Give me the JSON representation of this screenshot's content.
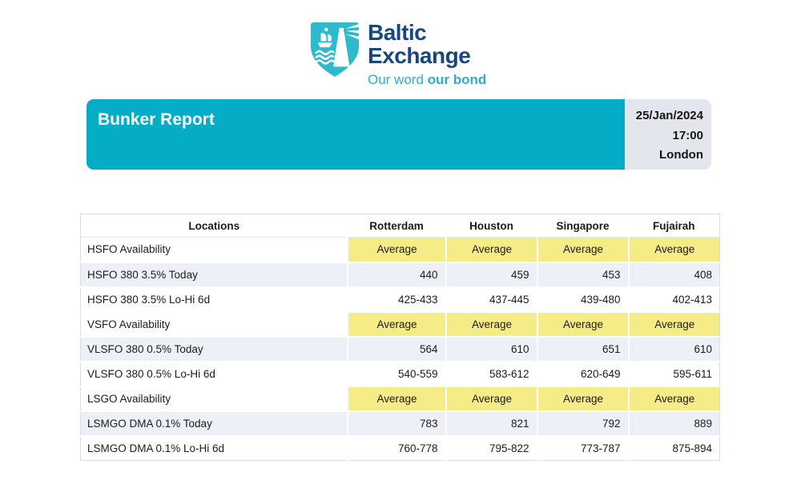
{
  "colors": {
    "teal_bar": "#05ACC5",
    "logo_teal": "#2FB9CC",
    "tagline_teal": "#2BAEC8",
    "navy": "#17477D",
    "highlight_yellow": "#F6EC87",
    "row_alt_blue": "#EDF1F7",
    "datebox_gray": "#E3E7ED",
    "table_border": "#D9DEE3"
  },
  "logo": {
    "brand_line1": "Baltic",
    "brand_line2": "Exchange",
    "tagline_regular": "Our word ",
    "tagline_bold": "our bond"
  },
  "header": {
    "title": "Bunker Report",
    "date": "25/Jan/2024",
    "time": "17:00",
    "city": "London"
  },
  "table": {
    "columns": [
      "Locations",
      "Rotterdam",
      "Houston",
      "Singapore",
      "Fujairah"
    ],
    "rows": [
      {
        "label": "HSFO Availability",
        "type": "availability",
        "values": [
          "Average",
          "Average",
          "Average",
          "Average"
        ]
      },
      {
        "label": "HSFO 380 3.5% Today",
        "type": "today",
        "values": [
          "440",
          "459",
          "453",
          "408"
        ]
      },
      {
        "label": "HSFO 380 3.5% Lo-Hi 6d",
        "type": "range",
        "values": [
          "425-433",
          "437-445",
          "439-480",
          "402-413"
        ]
      },
      {
        "label": "VSFO Availability",
        "type": "availability",
        "values": [
          "Average",
          "Average",
          "Average",
          "Average"
        ]
      },
      {
        "label": "VLSFO 380 0.5% Today",
        "type": "today",
        "values": [
          "564",
          "610",
          "651",
          "610"
        ]
      },
      {
        "label": "VLSFO 380 0.5% Lo-Hi 6d",
        "type": "range",
        "values": [
          "540-559",
          "583-612",
          "620-649",
          "595-611"
        ]
      },
      {
        "label": "LSGO Availability",
        "type": "availability",
        "values": [
          "Average",
          "Average",
          "Average",
          "Average"
        ]
      },
      {
        "label": "LSMGO DMA 0.1% Today",
        "type": "today",
        "values": [
          "783",
          "821",
          "792",
          "889"
        ]
      },
      {
        "label": "LSMGO DMA 0.1% Lo-Hi 6d",
        "type": "range",
        "values": [
          "760-778",
          "795-822",
          "773-787",
          "875-894"
        ]
      }
    ]
  }
}
